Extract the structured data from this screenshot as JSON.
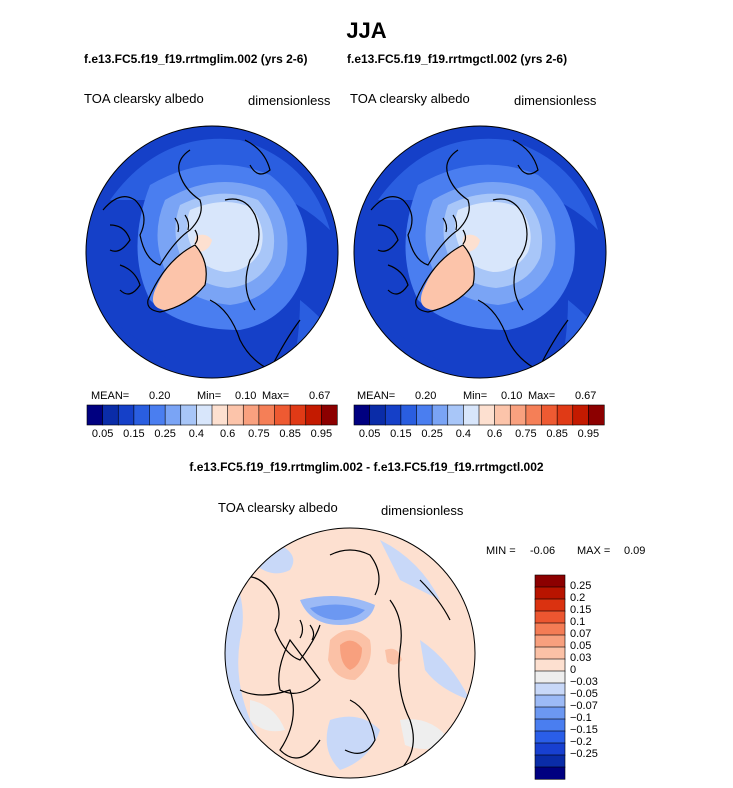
{
  "title": "JJA",
  "panel_left": {
    "subtitle": "f.e13.FC5.f19_f19.rrtmglim.002 (yrs 2-6)",
    "variable": "TOA clearsky albedo",
    "units": "dimensionless",
    "mean_label": "MEAN=",
    "mean": "0.20",
    "min_label": "Min=",
    "min": "0.10",
    "max_label": "Max=",
    "max": "0.67"
  },
  "panel_right": {
    "subtitle": "f.e13.FC5.f19_f19.rrtmgctl.002 (yrs 2-6)",
    "variable": "TOA clearsky albedo",
    "units": "dimensionless",
    "mean_label": "MEAN=",
    "mean": "0.20",
    "min_label": "Min=",
    "min": "0.10",
    "max_label": "Max=",
    "max": "0.67"
  },
  "panel_diff": {
    "subtitle": "f.e13.FC5.f19_f19.rrtmglim.002 - f.e13.FC5.f19_f19.rrtmgctl.002",
    "variable": "TOA clearsky albedo",
    "units": "dimensionless",
    "min_label": "MIN =",
    "min": "-0.06",
    "max_label": "MAX =",
    "max": "0.09"
  },
  "colors": {
    "abs_scale": [
      "#000080",
      "#0a2ca8",
      "#1540c8",
      "#2a5ee0",
      "#4a7ef0",
      "#7aa4f5",
      "#a8c6f8",
      "#d8e6fb",
      "#fde0d0",
      "#fcc4aa",
      "#f9a17f",
      "#f57f57",
      "#ee5a32",
      "#e03a16",
      "#c41a00",
      "#8c0000"
    ],
    "diff_scale": [
      "#000080",
      "#0a2ca8",
      "#1840d0",
      "#2a5ee8",
      "#4a7ef0",
      "#6c98f2",
      "#9cbaf6",
      "#c8d8f8",
      "#eeeeee",
      "#fde0d0",
      "#fbc1a6",
      "#f8a07e",
      "#f47c55",
      "#ec5630",
      "#da3210",
      "#b81400",
      "#8c0000"
    ]
  },
  "chart_data": [
    {
      "type": "heatmap",
      "projection": "north polar stereographic",
      "title": "f.e13.FC5.f19_f19.rrtmglim.002 (yrs 2-6)",
      "variable": "TOA clearsky albedo",
      "units": "dimensionless",
      "mean": 0.2,
      "min": 0.1,
      "max": 0.67,
      "contour_levels": [
        0.05,
        0.1,
        0.15,
        0.2,
        0.25,
        0.3,
        0.4,
        0.5,
        0.6,
        0.7,
        0.75,
        0.8,
        0.85,
        0.9,
        0.95
      ],
      "colorbar_tick_labels": [
        "0.05",
        "0.15",
        "0.25",
        "0.4",
        "0.6",
        "0.75",
        "0.85",
        "0.95"
      ]
    },
    {
      "type": "heatmap",
      "projection": "north polar stereographic",
      "title": "f.e13.FC5.f19_f19.rrtmgctl.002 (yrs 2-6)",
      "variable": "TOA clearsky albedo",
      "units": "dimensionless",
      "mean": 0.2,
      "min": 0.1,
      "max": 0.67,
      "contour_levels": [
        0.05,
        0.1,
        0.15,
        0.2,
        0.25,
        0.3,
        0.4,
        0.5,
        0.6,
        0.7,
        0.75,
        0.8,
        0.85,
        0.9,
        0.95
      ],
      "colorbar_tick_labels": [
        "0.05",
        "0.15",
        "0.25",
        "0.4",
        "0.6",
        "0.75",
        "0.85",
        "0.95"
      ]
    },
    {
      "type": "heatmap",
      "projection": "north polar stereographic",
      "title": "f.e13.FC5.f19_f19.rrtmglim.002 - f.e13.FC5.f19_f19.rrtmgctl.002",
      "variable": "TOA clearsky albedo",
      "units": "dimensionless",
      "min": -0.06,
      "max": 0.09,
      "contour_levels": [
        0.25,
        0.2,
        0.15,
        0.1,
        0.07,
        0.05,
        0.03,
        0,
        -0.03,
        -0.05,
        -0.07,
        -0.1,
        -0.15,
        -0.2,
        -0.25
      ],
      "colorbar_tick_labels": [
        "0.25",
        "0.2",
        "0.15",
        "0.1",
        "0.07",
        "0.05",
        "0.03",
        "0",
        "−0.03",
        "−0.05",
        "−0.07",
        "−0.1",
        "−0.15",
        "−0.2",
        "−0.25"
      ]
    }
  ]
}
